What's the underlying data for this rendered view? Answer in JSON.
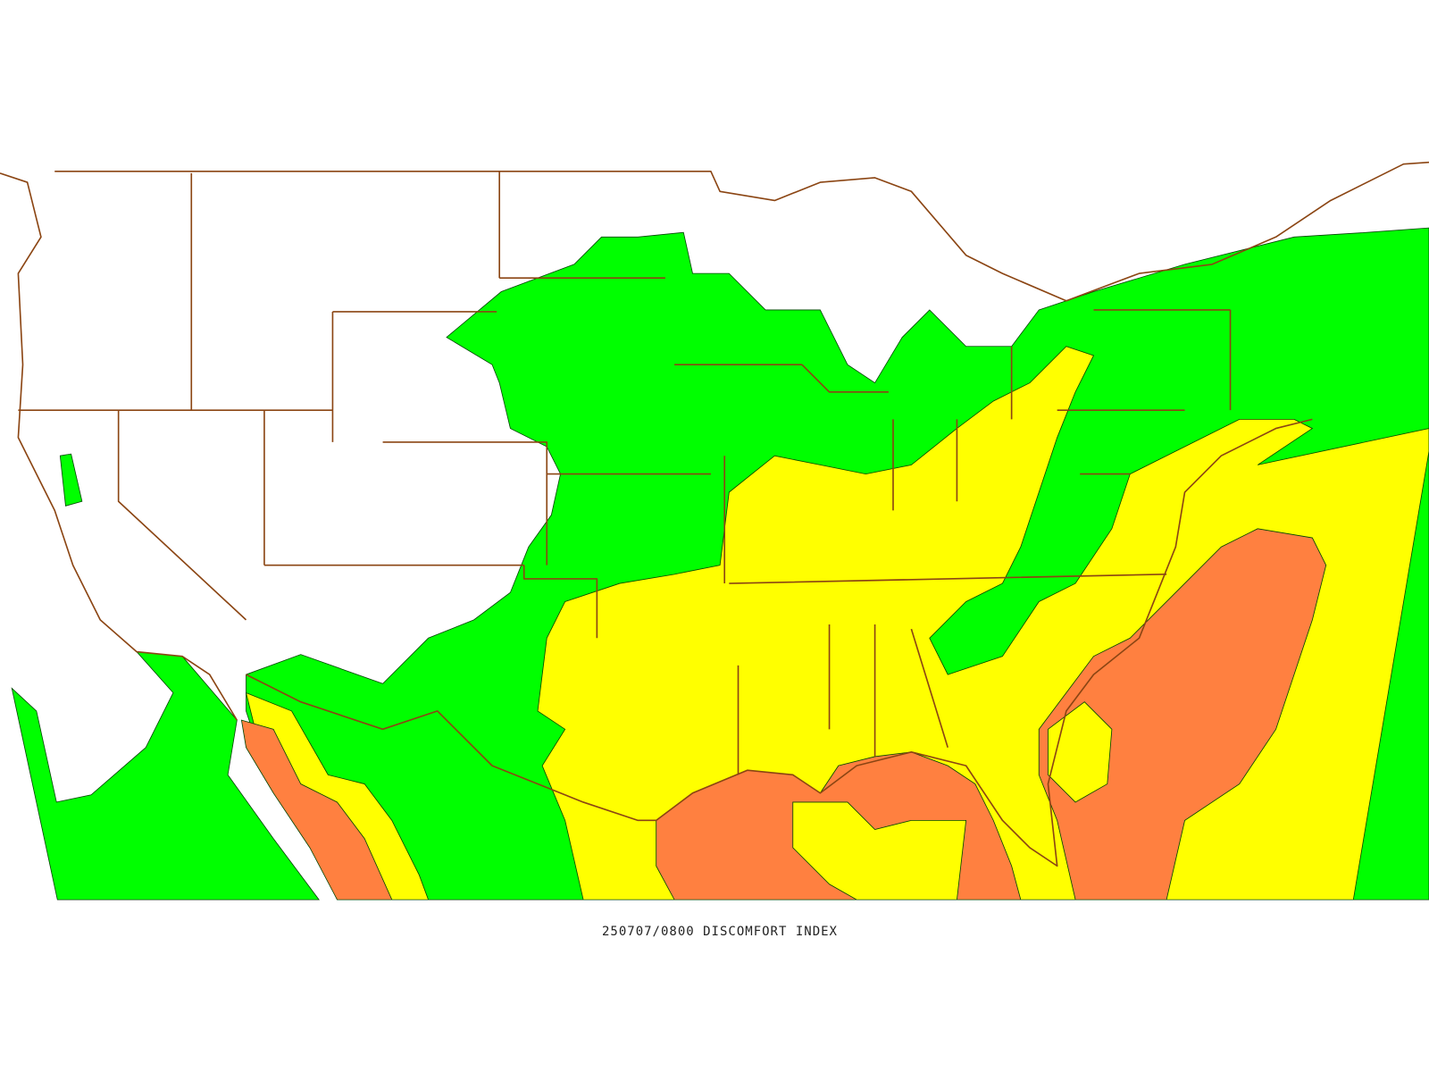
{
  "caption": "250707/0800 DISCOMFORT INDEX"
}
